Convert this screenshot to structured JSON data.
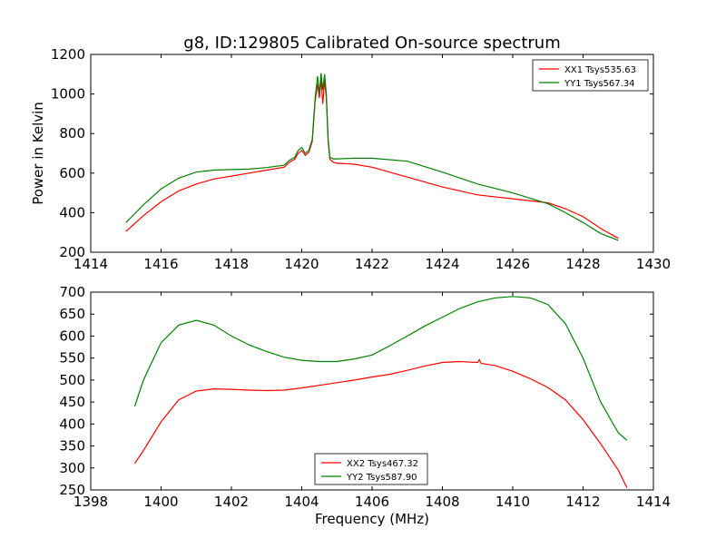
{
  "chart_data": [
    {
      "type": "line",
      "title": "g8, ID:129805 Calibrated On-source spectrum",
      "xlabel": "",
      "ylabel": "Power in Kelvin",
      "xlim": [
        1414,
        1430
      ],
      "ylim": [
        200,
        1200
      ],
      "xticks": [
        1414,
        1416,
        1418,
        1420,
        1422,
        1424,
        1426,
        1428,
        1430
      ],
      "yticks": [
        200,
        400,
        600,
        800,
        1000,
        1200
      ],
      "legend_position": "top-right",
      "grid": false,
      "series": [
        {
          "name": "XX1 Tsys535.63",
          "color": "#ff0000",
          "x": [
            1415.0,
            1415.5,
            1416.0,
            1416.5,
            1417.0,
            1417.5,
            1418.0,
            1418.5,
            1419.0,
            1419.5,
            1419.65,
            1419.8,
            1419.9,
            1420.0,
            1420.1,
            1420.2,
            1420.3,
            1420.38,
            1420.45,
            1420.5,
            1420.55,
            1420.6,
            1420.65,
            1420.7,
            1420.75,
            1420.8,
            1420.9,
            1421.0,
            1421.5,
            1422.0,
            1423.0,
            1424.0,
            1425.0,
            1426.0,
            1427.0,
            1427.5,
            1428.0,
            1428.5,
            1429.0
          ],
          "y": [
            305,
            385,
            455,
            510,
            545,
            570,
            585,
            600,
            615,
            630,
            655,
            670,
            700,
            715,
            690,
            705,
            760,
            960,
            1050,
            980,
            1070,
            950,
            1070,
            980,
            760,
            670,
            655,
            650,
            645,
            630,
            580,
            530,
            490,
            470,
            450,
            420,
            380,
            320,
            270
          ]
        },
        {
          "name": "YY1 Tsys567.34",
          "color": "#008000",
          "x": [
            1415.0,
            1415.5,
            1416.0,
            1416.5,
            1417.0,
            1417.5,
            1418.0,
            1418.5,
            1419.0,
            1419.5,
            1419.65,
            1419.8,
            1419.9,
            1420.0,
            1420.1,
            1420.2,
            1420.3,
            1420.38,
            1420.45,
            1420.5,
            1420.55,
            1420.6,
            1420.65,
            1420.7,
            1420.75,
            1420.8,
            1420.9,
            1421.0,
            1421.5,
            1422.0,
            1423.0,
            1424.0,
            1425.0,
            1426.0,
            1427.0,
            1427.5,
            1428.0,
            1428.5,
            1429.0
          ],
          "y": [
            350,
            440,
            520,
            575,
            605,
            615,
            618,
            620,
            628,
            640,
            665,
            680,
            715,
            730,
            700,
            715,
            770,
            975,
            1090,
            1000,
            1105,
            1020,
            1100,
            1000,
            770,
            680,
            672,
            672,
            675,
            675,
            660,
            605,
            545,
            500,
            445,
            400,
            350,
            295,
            260
          ]
        }
      ]
    },
    {
      "type": "line",
      "title": "",
      "xlabel": "Frequency (MHz)",
      "ylabel": "",
      "xlim": [
        1398,
        1414
      ],
      "ylim": [
        250,
        700
      ],
      "xticks": [
        1398,
        1400,
        1402,
        1404,
        1406,
        1408,
        1410,
        1412,
        1414
      ],
      "yticks": [
        250,
        300,
        350,
        400,
        450,
        500,
        550,
        600,
        650,
        700
      ],
      "legend_position": "bottom-center",
      "grid": false,
      "series": [
        {
          "name": "XX2 Tsys467.32",
          "color": "#ff0000",
          "x": [
            1399.25,
            1399.5,
            1400.0,
            1400.5,
            1401.0,
            1401.5,
            1402.0,
            1402.5,
            1403.0,
            1403.5,
            1404.0,
            1404.5,
            1405.0,
            1405.5,
            1406.0,
            1406.5,
            1407.0,
            1407.5,
            1408.0,
            1408.5,
            1409.0,
            1409.05,
            1409.1,
            1409.5,
            1410.0,
            1410.5,
            1411.0,
            1411.5,
            1412.0,
            1412.5,
            1413.0,
            1413.25
          ],
          "y": [
            310,
            340,
            405,
            455,
            475,
            480,
            479,
            477,
            476,
            477,
            482,
            488,
            494,
            500,
            507,
            513,
            522,
            532,
            540,
            542,
            540,
            546,
            538,
            533,
            520,
            503,
            483,
            455,
            410,
            355,
            295,
            255
          ]
        },
        {
          "name": "YY2 Tsys587.90",
          "color": "#008000",
          "x": [
            1399.25,
            1399.5,
            1400.0,
            1400.5,
            1401.0,
            1401.5,
            1402.0,
            1402.5,
            1403.0,
            1403.5,
            1404.0,
            1404.5,
            1405.0,
            1405.5,
            1406.0,
            1406.5,
            1407.0,
            1407.5,
            1408.0,
            1408.5,
            1409.0,
            1409.5,
            1410.0,
            1410.5,
            1411.0,
            1411.5,
            1412.0,
            1412.5,
            1413.0,
            1413.25
          ],
          "y": [
            440,
            500,
            585,
            625,
            636,
            625,
            600,
            580,
            565,
            552,
            545,
            542,
            542,
            548,
            557,
            578,
            600,
            623,
            643,
            663,
            678,
            687,
            690,
            687,
            672,
            628,
            550,
            450,
            380,
            363
          ]
        }
      ]
    }
  ]
}
